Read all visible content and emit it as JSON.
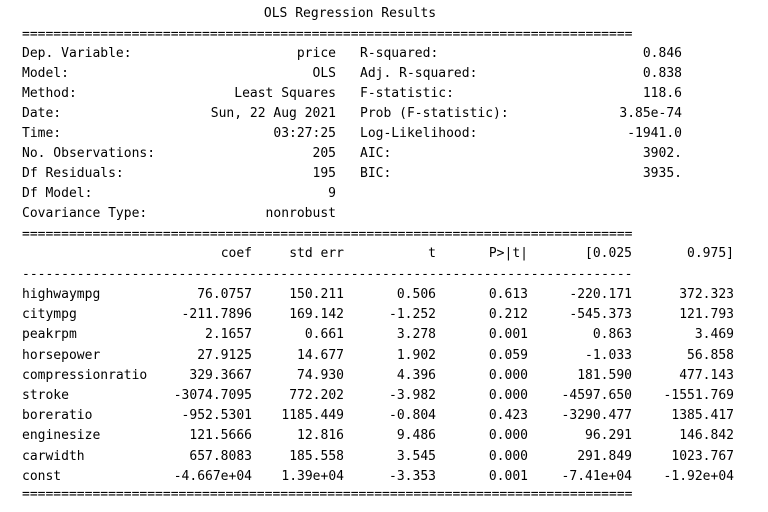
{
  "title": "OLS Regression Results",
  "rules": {
    "double": "==============================================================================",
    "single": "------------------------------------------------------------------------------"
  },
  "summary_left": [
    {
      "label": "Dep. Variable:",
      "value": "price"
    },
    {
      "label": "Model:",
      "value": "OLS"
    },
    {
      "label": "Method:",
      "value": "Least Squares"
    },
    {
      "label": "Date:",
      "value": "Sun, 22 Aug 2021"
    },
    {
      "label": "Time:",
      "value": "03:27:25"
    },
    {
      "label": "No. Observations:",
      "value": "205"
    },
    {
      "label": "Df Residuals:",
      "value": "195"
    },
    {
      "label": "Df Model:",
      "value": "9"
    },
    {
      "label": "Covariance Type:",
      "value": "nonrobust"
    }
  ],
  "summary_right": [
    {
      "label": "R-squared:",
      "value": "0.846"
    },
    {
      "label": "Adj. R-squared:",
      "value": "0.838"
    },
    {
      "label": "F-statistic:",
      "value": "118.6"
    },
    {
      "label": "Prob (F-statistic):",
      "value": "3.85e-74"
    },
    {
      "label": "Log-Likelihood:",
      "value": "-1941.0"
    },
    {
      "label": "AIC:",
      "value": "3902."
    },
    {
      "label": "BIC:",
      "value": "3935."
    }
  ],
  "coef_table": {
    "headers": [
      "coef",
      "std err",
      "t",
      "P>|t|",
      "[0.025",
      "0.975]"
    ],
    "rows": [
      {
        "name": "highwaympg",
        "values": [
          "76.0757",
          "150.211",
          "0.506",
          "0.613",
          "-220.171",
          "372.323"
        ]
      },
      {
        "name": "citympg",
        "values": [
          "-211.7896",
          "169.142",
          "-1.252",
          "0.212",
          "-545.373",
          "121.793"
        ]
      },
      {
        "name": "peakrpm",
        "values": [
          "2.1657",
          "0.661",
          "3.278",
          "0.001",
          "0.863",
          "3.469"
        ]
      },
      {
        "name": "horsepower",
        "values": [
          "27.9125",
          "14.677",
          "1.902",
          "0.059",
          "-1.033",
          "56.858"
        ]
      },
      {
        "name": "compressionratio",
        "values": [
          "329.3667",
          "74.930",
          "4.396",
          "0.000",
          "181.590",
          "477.143"
        ]
      },
      {
        "name": "stroke",
        "values": [
          "-3074.7095",
          "772.202",
          "-3.982",
          "0.000",
          "-4597.650",
          "-1551.769"
        ]
      },
      {
        "name": "boreratio",
        "values": [
          "-952.5301",
          "1185.449",
          "-0.804",
          "0.423",
          "-3290.477",
          "1385.417"
        ]
      },
      {
        "name": "enginesize",
        "values": [
          "121.5666",
          "12.816",
          "9.486",
          "0.000",
          "96.291",
          "146.842"
        ]
      },
      {
        "name": "carwidth",
        "values": [
          "657.8083",
          "185.558",
          "3.545",
          "0.000",
          "291.849",
          "1023.767"
        ]
      },
      {
        "name": "const",
        "values": [
          "-4.667e+04",
          "1.39e+04",
          "-3.353",
          "0.001",
          "-7.41e+04",
          "-1.92e+04"
        ]
      }
    ]
  }
}
